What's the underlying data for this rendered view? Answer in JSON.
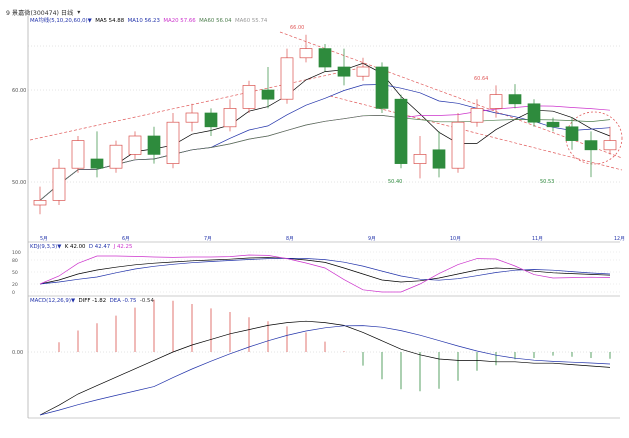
{
  "window": {
    "title": "9 景嘉微(300474) 日线",
    "menu_icon": "chevron-down-icon",
    "period_label": "日线"
  },
  "colors": {
    "up": "#d9534f",
    "down": "#2e8b3d",
    "ma5": "#000000",
    "ma10": "#2233aa",
    "ma20": "#cc33cc",
    "ma60": "#4f7f4f",
    "trend": "#e05a5a",
    "grid": "#c8c8c8"
  },
  "main_panel": {
    "legend": [
      {
        "text": "MA均线(5,10,20,60,0)▼",
        "color": "#2233aa"
      },
      {
        "text": "MA5 54.88",
        "color": "#000000"
      },
      {
        "text": "MA10 56.23",
        "color": "#2233aa"
      },
      {
        "text": "MA20 57.66",
        "color": "#cc33cc"
      },
      {
        "text": "MA60 56.04",
        "color": "#4f7f4f"
      },
      {
        "text": "MA60 55.74",
        "color": "#999999"
      }
    ],
    "y_ticks": [
      "60.00",
      "50.00"
    ],
    "annotations": {
      "high": "66.00",
      "mid_high": "60.64",
      "low1": "50.40",
      "low2": "50.53"
    },
    "x_labels": [
      "5月",
      "6月",
      "7月",
      "8月",
      "9月",
      "10月",
      "11月",
      "12月"
    ],
    "trend_marker": "circle-highlight"
  },
  "kdj_panel": {
    "legend": [
      {
        "text": "KDJ(9,3,3)▼",
        "color": "#2233aa"
      },
      {
        "text": "K 42.00",
        "color": "#000000"
      },
      {
        "text": "D 42.47",
        "color": "#2233aa"
      },
      {
        "text": "J 42.25",
        "color": "#cc33cc"
      }
    ],
    "y_ticks": [
      "100",
      "80",
      "50",
      "20",
      "0"
    ]
  },
  "macd_panel": {
    "legend": [
      {
        "text": "MACD(12,26,9)▼",
        "color": "#2233aa"
      },
      {
        "text": "DIFF -1.82",
        "color": "#000000"
      },
      {
        "text": "DEA -0.75",
        "color": "#2233aa"
      },
      {
        "text": "-0.54",
        "color": "#333333"
      }
    ],
    "y_ticks": [
      "0.00"
    ]
  },
  "candles": [
    {
      "o": 47.5,
      "c": 48.0,
      "h": 49.5,
      "l": 46.5
    },
    {
      "o": 48.0,
      "c": 51.5,
      "h": 52.5,
      "l": 47.5
    },
    {
      "o": 51.5,
      "c": 54.5,
      "h": 55.0,
      "l": 51.0
    },
    {
      "o": 52.5,
      "c": 51.5,
      "h": 55.5,
      "l": 50.5
    },
    {
      "o": 51.5,
      "c": 54.0,
      "h": 54.5,
      "l": 51.0
    },
    {
      "o": 53.0,
      "c": 55.0,
      "h": 55.5,
      "l": 52.5
    },
    {
      "o": 55.0,
      "c": 53.0,
      "h": 56.0,
      "l": 52.0
    },
    {
      "o": 52.0,
      "c": 56.5,
      "h": 57.5,
      "l": 51.5
    },
    {
      "o": 56.5,
      "c": 57.5,
      "h": 58.5,
      "l": 55.5
    },
    {
      "o": 57.5,
      "c": 56.0,
      "h": 58.0,
      "l": 55.0
    },
    {
      "o": 56.0,
      "c": 58.0,
      "h": 59.0,
      "l": 55.5
    },
    {
      "o": 58.0,
      "c": 60.5,
      "h": 61.0,
      "l": 57.5
    },
    {
      "o": 60.0,
      "c": 59.0,
      "h": 62.5,
      "l": 58.0
    },
    {
      "o": 59.0,
      "c": 63.5,
      "h": 64.5,
      "l": 58.5
    },
    {
      "o": 63.5,
      "c": 64.5,
      "h": 66.0,
      "l": 63.0
    },
    {
      "o": 64.5,
      "c": 62.5,
      "h": 65.0,
      "l": 62.0
    },
    {
      "o": 62.5,
      "c": 61.5,
      "h": 64.5,
      "l": 60.5
    },
    {
      "o": 61.5,
      "c": 62.5,
      "h": 63.5,
      "l": 61.0
    },
    {
      "o": 62.5,
      "c": 58.0,
      "h": 63.0,
      "l": 57.5
    },
    {
      "o": 59.0,
      "c": 52.0,
      "h": 59.5,
      "l": 51.5
    },
    {
      "o": 52.0,
      "c": 53.0,
      "h": 55.0,
      "l": 50.4
    },
    {
      "o": 53.5,
      "c": 51.5,
      "h": 55.5,
      "l": 50.5
    },
    {
      "o": 51.5,
      "c": 56.5,
      "h": 57.5,
      "l": 51.0
    },
    {
      "o": 56.5,
      "c": 58.0,
      "h": 59.0,
      "l": 56.0
    },
    {
      "o": 58.0,
      "c": 59.5,
      "h": 60.5,
      "l": 57.0
    },
    {
      "o": 59.5,
      "c": 58.5,
      "h": 60.64,
      "l": 58.0
    },
    {
      "o": 58.5,
      "c": 56.5,
      "h": 59.0,
      "l": 56.0
    },
    {
      "o": 56.5,
      "c": 56.0,
      "h": 57.0,
      "l": 55.5
    },
    {
      "o": 56.0,
      "c": 54.5,
      "h": 57.0,
      "l": 53.5
    },
    {
      "o": 54.5,
      "c": 53.5,
      "h": 55.5,
      "l": 50.53
    },
    {
      "o": 53.5,
      "c": 54.5,
      "h": 56.0,
      "l": 53.0
    }
  ]
}
